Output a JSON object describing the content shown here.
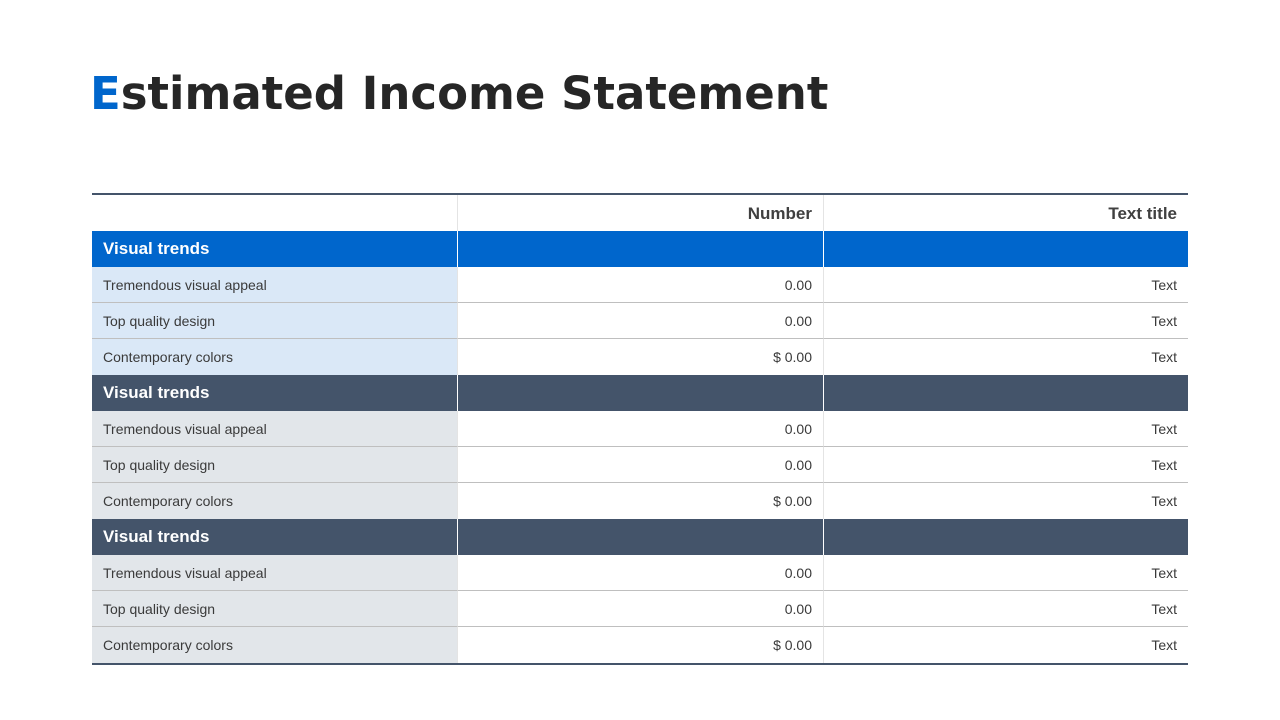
{
  "title": {
    "first_letter": "E",
    "rest": "stimated Income Statement"
  },
  "colors": {
    "accent": "#0066cc",
    "section_dark": "#44546a",
    "tint_blue": "#dae8f7",
    "tint_gray": "#e2e6ea"
  },
  "table": {
    "headers": [
      "",
      "Number",
      "Text title"
    ],
    "sections": [
      {
        "label": "Visual trends",
        "rows": [
          {
            "label": "Tremendous visual appeal",
            "number": "0.00",
            "text": "Text"
          },
          {
            "label": "Top quality  design",
            "number": "0.00",
            "text": "Text"
          },
          {
            "label": "Contemporary colors",
            "number": "$ 0.00",
            "text": "Text"
          }
        ]
      },
      {
        "label": "Visual trends",
        "rows": [
          {
            "label": "Tremendous visual appeal",
            "number": "0.00",
            "text": "Text"
          },
          {
            "label": "Top quality  design",
            "number": "0.00",
            "text": "Text"
          },
          {
            "label": "Contemporary colors",
            "number": "$ 0.00",
            "text": "Text"
          }
        ]
      },
      {
        "label": "Visual trends",
        "rows": [
          {
            "label": "Tremendous visual appeal",
            "number": "0.00",
            "text": "Text"
          },
          {
            "label": "Top quality  design",
            "number": "0.00",
            "text": "Text"
          },
          {
            "label": "Contemporary colors",
            "number": "$ 0.00",
            "text": "Text"
          }
        ]
      }
    ]
  }
}
